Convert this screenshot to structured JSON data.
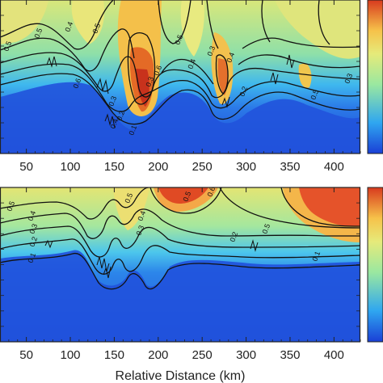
{
  "figure": {
    "xlabel": "Relative Distance (km)"
  },
  "colormap": [
    "#1a3fd6",
    "#1f6fe6",
    "#2fa6f0",
    "#5cd6e6",
    "#9ae8a0",
    "#e6ea7a",
    "#f6c24a",
    "#f08a2c",
    "#d83a1e"
  ],
  "chart_data": [
    {
      "type": "heatmap",
      "panel": "upper",
      "xlim": [
        20,
        430
      ],
      "xticks": [
        50,
        100,
        150,
        200,
        250,
        300,
        350,
        400
      ],
      "tick_labels": [
        "50",
        "100",
        "150",
        "200",
        "250",
        "300",
        "350",
        "400"
      ],
      "contour_levels": [
        0.1,
        0.2,
        0.3,
        0.4,
        0.5,
        0.6,
        0.7
      ],
      "contour_labels": [
        "0.5",
        "0.5",
        "0.4",
        "0.6",
        "0.3",
        "0.5",
        "0.4",
        "0.2",
        "0.1",
        "0.3",
        "0.6",
        "0.5",
        "0.4",
        "0.3",
        "0.4",
        "0.2",
        "0.5",
        "0.3"
      ],
      "colorbar": true
    },
    {
      "type": "heatmap",
      "panel": "lower",
      "xlim": [
        20,
        430
      ],
      "xticks": [
        50,
        100,
        150,
        200,
        250,
        300,
        350,
        400
      ],
      "tick_labels": [
        "50",
        "100",
        "150",
        "200",
        "250",
        "300",
        "350",
        "400"
      ],
      "contour_levels": [
        0.1,
        0.2,
        0.3,
        0.4,
        0.5,
        0.6
      ],
      "contour_labels": [
        "0.5",
        "0.4",
        "0.3",
        "0.2",
        "0.1",
        "0.5",
        "0.4",
        "0.3",
        "0.5",
        "0.6",
        "0.2",
        "0.5",
        "0.1"
      ],
      "colorbar": true
    }
  ]
}
